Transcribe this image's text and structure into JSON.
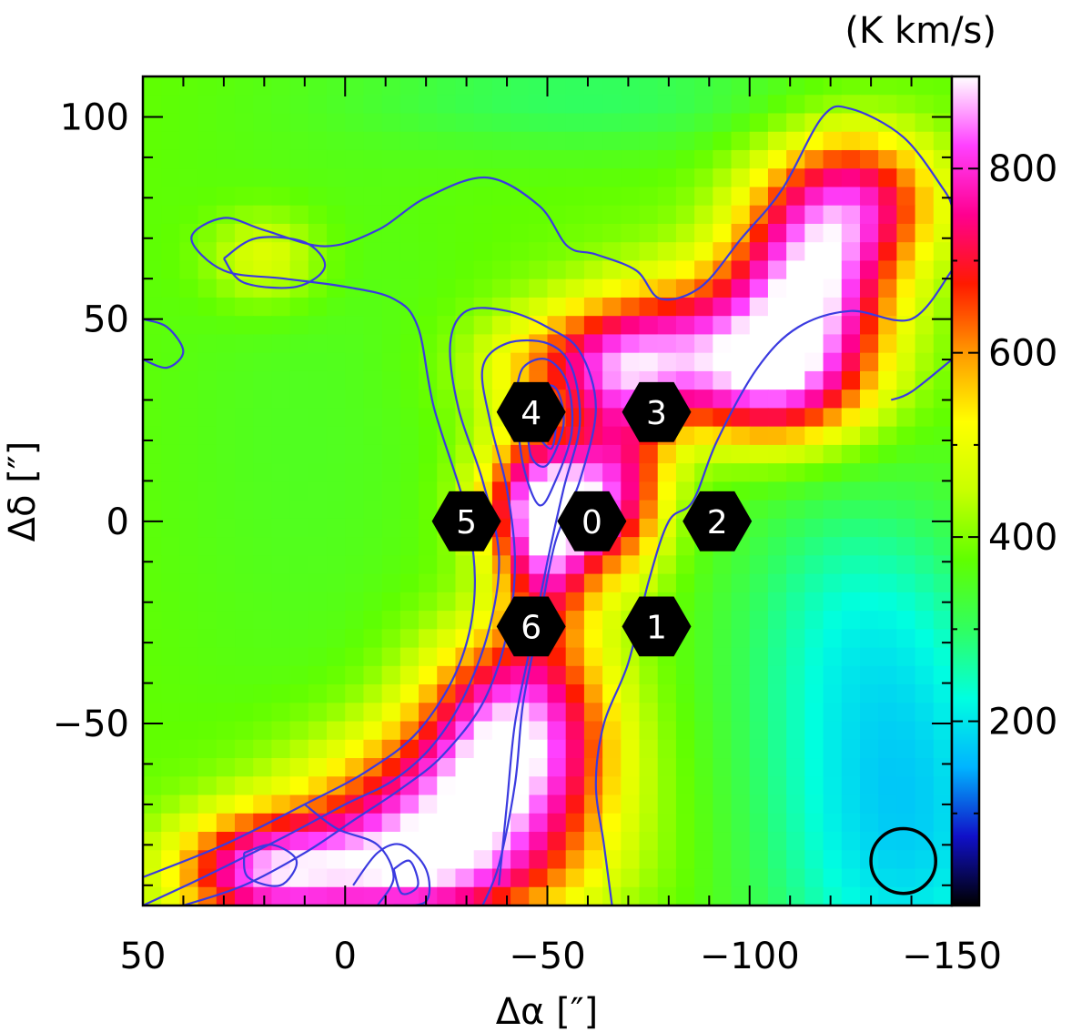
{
  "chart_data": {
    "type": "heatmap",
    "title": "",
    "xlabel": "Δα [″]",
    "ylabel": "Δδ [″]",
    "xlim": [
      50,
      -150
    ],
    "ylim": [
      -95,
      110
    ],
    "x_ticks": [
      {
        "value": 50,
        "label": "50"
      },
      {
        "value": 0,
        "label": "0"
      },
      {
        "value": -50,
        "label": "−50"
      },
      {
        "value": -100,
        "label": "−100"
      },
      {
        "value": -150,
        "label": "−150"
      }
    ],
    "y_ticks": [
      {
        "value": 100,
        "label": "100"
      },
      {
        "value": 50,
        "label": "50"
      },
      {
        "value": 0,
        "label": "0"
      },
      {
        "value": -50,
        "label": "−50"
      }
    ],
    "colorbar": {
      "unit": "(K km/s)",
      "range": [
        0,
        900
      ],
      "ticks": [
        {
          "value": 200,
          "label": "200"
        },
        {
          "value": 400,
          "label": "400"
        },
        {
          "value": 600,
          "label": "600"
        },
        {
          "value": 800,
          "label": "800"
        }
      ],
      "colors": [
        "#000000",
        "#1010c8",
        "#00b4ff",
        "#00ffe0",
        "#30ff60",
        "#60ff00",
        "#c8ff00",
        "#ffff00",
        "#ff9900",
        "#ff1a00",
        "#ff0090",
        "#ff40ff",
        "#ffffff"
      ]
    },
    "background_level": 380,
    "emission_components": [
      {
        "x": -52,
        "y": 5,
        "sx": 12,
        "sy": 12,
        "amp": 500
      },
      {
        "x": -50,
        "y": -12,
        "sx": 8,
        "sy": 14,
        "amp": 250
      },
      {
        "x": -42,
        "y": -50,
        "sx": 16,
        "sy": 16,
        "amp": 450
      },
      {
        "x": -25,
        "y": -72,
        "sx": 24,
        "sy": 14,
        "amp": 380
      },
      {
        "x": -10,
        "y": -88,
        "sx": 28,
        "sy": 10,
        "amp": 340
      },
      {
        "x": 22,
        "y": -86,
        "sx": 14,
        "sy": 10,
        "amp": 280
      },
      {
        "x": -62,
        "y": 38,
        "sx": 18,
        "sy": 10,
        "amp": 280
      },
      {
        "x": -70,
        "y": 12,
        "sx": 8,
        "sy": 18,
        "amp": 220
      },
      {
        "x": -88,
        "y": 45,
        "sx": 20,
        "sy": 12,
        "amp": 280
      },
      {
        "x": -115,
        "y": 58,
        "sx": 14,
        "sy": 18,
        "amp": 460
      },
      {
        "x": -128,
        "y": 80,
        "sx": 14,
        "sy": 12,
        "amp": 280
      },
      {
        "x": -105,
        "y": 32,
        "sx": 16,
        "sy": 10,
        "amp": 260
      },
      {
        "x": -138,
        "y": -75,
        "sx": 26,
        "sy": 38,
        "amp": -200
      },
      {
        "x": -125,
        "y": -20,
        "sx": 22,
        "sy": 26,
        "amp": -90
      },
      {
        "x": -60,
        "y": 105,
        "sx": 40,
        "sy": 10,
        "amp": -80
      },
      {
        "x": 20,
        "y": 65,
        "sx": 10,
        "sy": 8,
        "amp": 120
      },
      {
        "x": 10,
        "y": 20,
        "sx": 30,
        "sy": 60,
        "amp": -30
      }
    ],
    "contours": [
      {
        "level": 1,
        "points": [
          [
            50,
            -88
          ],
          [
            30,
            -80
          ],
          [
            10,
            -70
          ],
          [
            -5,
            -62
          ],
          [
            -18,
            -52
          ],
          [
            -28,
            -36
          ],
          [
            -32,
            -18
          ],
          [
            -30,
            2
          ],
          [
            -22,
            28
          ],
          [
            -18,
            48
          ],
          [
            -12,
            55
          ],
          [
            0,
            58
          ],
          [
            15,
            60
          ],
          [
            30,
            62
          ],
          [
            38,
            70
          ],
          [
            30,
            75
          ],
          [
            20,
            72
          ],
          [
            5,
            68
          ],
          [
            -8,
            72
          ],
          [
            -20,
            80
          ],
          [
            -35,
            85
          ],
          [
            -48,
            78
          ],
          [
            -55,
            68
          ],
          [
            -62,
            66
          ],
          [
            -72,
            62
          ],
          [
            -78,
            55
          ],
          [
            -88,
            58
          ],
          [
            -98,
            70
          ],
          [
            -108,
            82
          ],
          [
            -118,
            100
          ],
          [
            -125,
            102
          ],
          [
            -138,
            95
          ],
          [
            -148,
            82
          ],
          [
            -150,
            78
          ]
        ]
      },
      {
        "level": 2,
        "points": [
          [
            -150,
            62
          ],
          [
            -140,
            50
          ],
          [
            -125,
            52
          ],
          [
            -112,
            48
          ],
          [
            -102,
            38
          ],
          [
            -92,
            20
          ],
          [
            -86,
            5
          ],
          [
            -80,
            0
          ],
          [
            -75,
            -15
          ],
          [
            -70,
            -35
          ],
          [
            -64,
            -50
          ],
          [
            -62,
            -65
          ],
          [
            -64,
            -80
          ],
          [
            -66,
            -95
          ]
        ]
      },
      {
        "level": 2,
        "points": [
          [
            -150,
            40
          ],
          [
            -140,
            32
          ],
          [
            -135,
            30
          ]
        ]
      },
      {
        "level": 3,
        "points": [
          [
            50,
            -95
          ],
          [
            35,
            -88
          ],
          [
            15,
            -78
          ],
          [
            0,
            -70
          ],
          [
            -12,
            -64
          ],
          [
            -22,
            -55
          ],
          [
            -30,
            -42
          ],
          [
            -36,
            -25
          ],
          [
            -38,
            -8
          ],
          [
            -34,
            10
          ],
          [
            -28,
            28
          ],
          [
            -26,
            44
          ],
          [
            -30,
            52
          ],
          [
            -40,
            52
          ],
          [
            -50,
            48
          ],
          [
            -58,
            42
          ],
          [
            -62,
            28
          ],
          [
            -58,
            10
          ],
          [
            -52,
            -5
          ],
          [
            -48,
            -25
          ],
          [
            -44,
            -45
          ],
          [
            -42,
            -65
          ],
          [
            -38,
            -85
          ],
          [
            -34,
            -95
          ]
        ]
      },
      {
        "level": 4,
        "points": [
          [
            40,
            -95
          ],
          [
            25,
            -90
          ],
          [
            10,
            -82
          ],
          [
            -2,
            -74
          ],
          [
            -14,
            -66
          ],
          [
            -24,
            -58
          ],
          [
            -34,
            -45
          ],
          [
            -40,
            -28
          ],
          [
            -42,
            -10
          ],
          [
            -40,
            8
          ],
          [
            -36,
            24
          ],
          [
            -34,
            38
          ],
          [
            -40,
            44
          ],
          [
            -50,
            44
          ],
          [
            -56,
            38
          ],
          [
            -58,
            24
          ],
          [
            -54,
            8
          ],
          [
            -50,
            -10
          ],
          [
            -46,
            -30
          ],
          [
            -42,
            -50
          ],
          [
            -40,
            -70
          ],
          [
            -38,
            -90
          ]
        ]
      },
      {
        "level": 5,
        "points": [
          [
            -42,
            30
          ],
          [
            -44,
            38
          ],
          [
            -50,
            40
          ],
          [
            -55,
            34
          ],
          [
            -56,
            22
          ],
          [
            -52,
            10
          ],
          [
            -48,
            4
          ],
          [
            -44,
            14
          ],
          [
            -42,
            30
          ]
        ]
      },
      {
        "level": 6,
        "points": [
          [
            -45,
            25
          ],
          [
            -47,
            32
          ],
          [
            -52,
            33
          ],
          [
            -54,
            24
          ],
          [
            -50,
            14
          ],
          [
            -46,
            16
          ],
          [
            -45,
            25
          ]
        ]
      },
      {
        "level": 7,
        "points": [
          [
            -47,
            22
          ],
          [
            -49,
            27
          ],
          [
            -52,
            26
          ],
          [
            -51,
            18
          ],
          [
            -47,
            22
          ]
        ]
      },
      {
        "level": 3,
        "points": [
          [
            50,
            50
          ],
          [
            44,
            48
          ],
          [
            40,
            42
          ],
          [
            44,
            38
          ],
          [
            50,
            40
          ]
        ]
      },
      {
        "level": 3,
        "points": [
          [
            30,
            65
          ],
          [
            22,
            70
          ],
          [
            10,
            69
          ],
          [
            5,
            63
          ],
          [
            12,
            58
          ],
          [
            25,
            59
          ],
          [
            30,
            65
          ]
        ]
      },
      {
        "level": 4,
        "points": [
          [
            10,
            -70
          ],
          [
            2,
            -76
          ],
          [
            -8,
            -80
          ],
          [
            -12,
            -88
          ],
          [
            -8,
            -95
          ]
        ]
      },
      {
        "level": 4,
        "points": [
          [
            25,
            -82
          ],
          [
            18,
            -80
          ],
          [
            12,
            -84
          ],
          [
            16,
            -90
          ],
          [
            24,
            -88
          ],
          [
            25,
            -82
          ]
        ]
      },
      {
        "level": 5,
        "points": [
          [
            -2,
            -90
          ],
          [
            -8,
            -82
          ],
          [
            -14,
            -80
          ],
          [
            -20,
            -86
          ],
          [
            -20,
            -94
          ],
          [
            -12,
            -95
          ]
        ]
      },
      {
        "level": 6,
        "points": [
          [
            -12,
            -86
          ],
          [
            -16,
            -84
          ],
          [
            -18,
            -90
          ],
          [
            -14,
            -92
          ],
          [
            -12,
            -86
          ]
        ]
      }
    ],
    "markers": [
      {
        "label": "0",
        "x": -61,
        "y": 0
      },
      {
        "label": "1",
        "x": -77,
        "y": -26
      },
      {
        "label": "2",
        "x": -92,
        "y": 0
      },
      {
        "label": "3",
        "x": -77,
        "y": 27
      },
      {
        "label": "4",
        "x": -46,
        "y": 27
      },
      {
        "label": "5",
        "x": -30,
        "y": 0
      },
      {
        "label": "6",
        "x": -46,
        "y": -26
      }
    ],
    "beam": {
      "x": -138,
      "y": -84,
      "diameter": 16
    },
    "grid": false,
    "legend": "none"
  },
  "colors": {
    "contour": "#3a3ae0",
    "marker_fill": "#000000",
    "marker_text": "#ffffff",
    "frame": "#000000"
  }
}
